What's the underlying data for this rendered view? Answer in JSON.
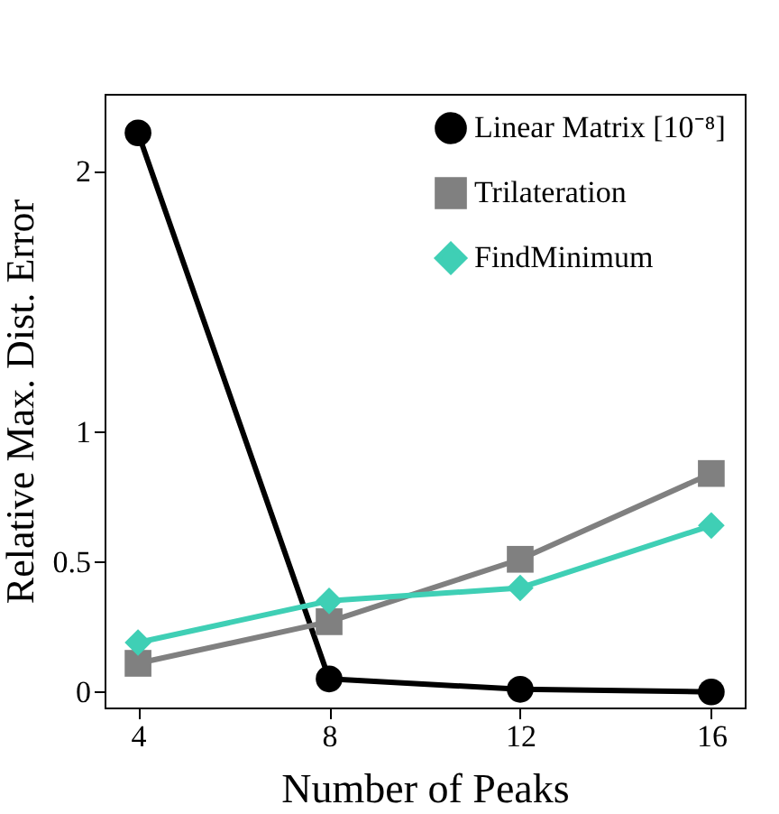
{
  "chart_data": {
    "type": "line",
    "xlabel": "Number of Peaks",
    "ylabel": "Relative Max. Dist. Error",
    "x": [
      4,
      8,
      12,
      16
    ],
    "series": [
      {
        "name": "Linear Matrix [10⁻⁸]",
        "color": "#000000",
        "marker": "circle",
        "values": [
          2.15,
          0.05,
          0.01,
          0.0
        ]
      },
      {
        "name": "Trilateration",
        "color": "#808080",
        "marker": "square",
        "values": [
          0.11,
          0.27,
          0.51,
          0.84
        ]
      },
      {
        "name": "FindMinimum",
        "color": "#3fcfb5",
        "marker": "diamond",
        "values": [
          0.19,
          0.35,
          0.4,
          0.64
        ]
      }
    ],
    "xlim": [
      3.3,
      16.7
    ],
    "xticks": [
      4,
      8,
      12,
      16
    ],
    "ylim": [
      -0.06,
      2.3
    ],
    "yticks": [
      0,
      0.5,
      1,
      2
    ],
    "grid": false,
    "legend": "top right",
    "line_style": "solid"
  }
}
